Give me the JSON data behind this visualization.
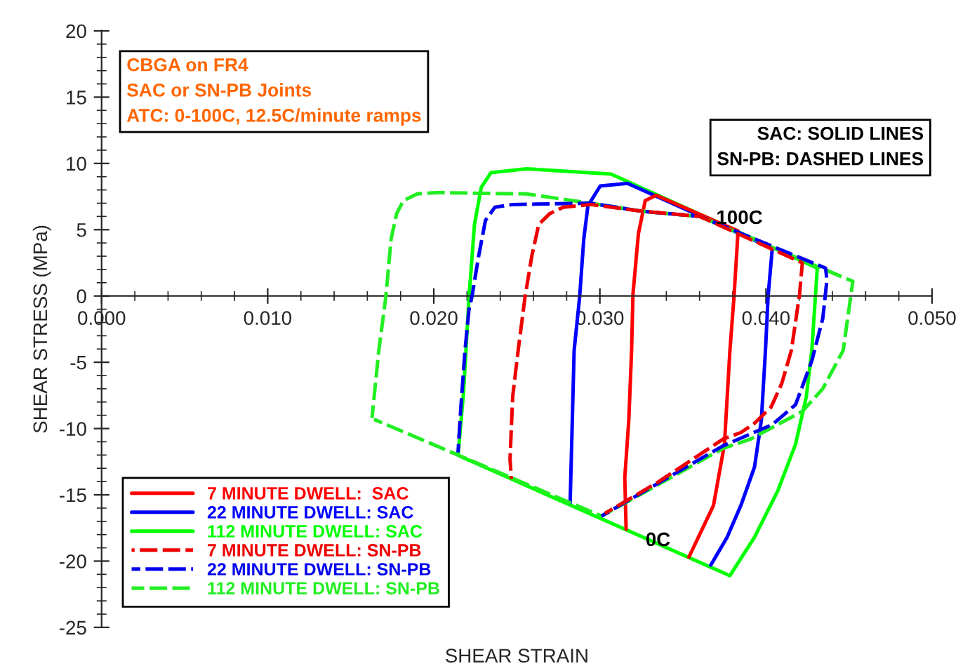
{
  "chart_data": {
    "type": "line",
    "xlabel": "SHEAR STRAIN",
    "ylabel": "SHEAR STRESS (MPa)",
    "xlim": [
      0,
      0.05
    ],
    "xticks": [
      {
        "value": 0,
        "label": "0.000"
      },
      {
        "value": 0.01,
        "label": "0.010"
      },
      {
        "value": 0.02,
        "label": "0.020"
      },
      {
        "value": 0.03,
        "label": "0.030"
      },
      {
        "value": 0.04,
        "label": "0.040"
      },
      {
        "value": 0.05,
        "label": "0.050"
      }
    ],
    "ylim": [
      -25,
      20
    ],
    "yticks": [
      -25,
      -20,
      -15,
      -10,
      -5,
      0,
      5,
      10,
      15,
      20
    ],
    "grid": false,
    "legend": "bottom left",
    "marker": "none",
    "annotations": [
      "CBGA on FR4\nSAC or SN-PB Joints\nATC: 0-100C, 12.5C/minute ramps",
      "SAC: SOLID LINES\nSN-PB: DASHED LINES",
      "100C",
      "0C"
    ],
    "series": [
      {
        "name": "7 MINUTE DWELL:  SAC",
        "color": "#ff0000",
        "line_style": "solid",
        "x": [
          0.03158,
          0.0315,
          0.03174,
          0.03191,
          0.03199,
          0.03232,
          0.03273,
          0.03339,
          0.03832,
          0.03808,
          0.03783,
          0.0375,
          0.03684,
          0.03536
        ],
        "values": [
          -17.6,
          -13.7,
          -9.4,
          -4.1,
          0.1,
          4.7,
          7.2,
          7.6,
          4.9,
          0.0,
          -4.1,
          -11.2,
          -15.8,
          -19.7
        ]
      },
      {
        "name": "22 MINUTE DWELL: SAC",
        "color": "#0000ff",
        "line_style": "solid",
        "x": [
          0.02821,
          0.02845,
          0.02878,
          0.02903,
          0.02928,
          0.03002,
          0.03166,
          0.04038,
          0.04013,
          0.03997,
          0.03972,
          0.03931,
          0.03849,
          0.03766,
          0.03668
        ],
        "values": [
          -15.6,
          -4.1,
          -0.1,
          4.3,
          6.8,
          8.3,
          8.5,
          3.6,
          0.0,
          -4.1,
          -9.4,
          -12.9,
          -15.8,
          -18.2,
          -20.3
        ]
      },
      {
        "name": "112 MINUTE DWELL: SAC",
        "color": "#00ff00",
        "line_style": "solid",
        "x": [
          0.02146,
          0.02179,
          0.02212,
          0.02245,
          0.02286,
          0.02344,
          0.02558,
          0.03067,
          0.03684,
          0.04309,
          0.04276,
          0.04243,
          0.04178,
          0.04071,
          0.03931,
          0.03783,
          0.0216
        ],
        "values": [
          -12.0,
          -7.3,
          -0.1,
          5.4,
          8.2,
          9.3,
          9.6,
          9.2,
          5.7,
          2.1,
          -4.1,
          -7.6,
          -11.2,
          -14.7,
          -18.2,
          -21.1,
          -12.1
        ]
      },
      {
        "name": "7 MINUTE DWELL: SN-PB",
        "color": "#ee0000",
        "line_style": "dashed",
        "x": [
          0.02467,
          0.02459,
          0.02475,
          0.02508,
          0.02549,
          0.0259,
          0.02632,
          0.02697,
          0.0278,
          0.02944,
          0.03248,
          0.03602,
          0.04219,
          0.04202,
          0.04153,
          0.04095,
          0.0403,
          0.03931,
          0.03849,
          0.03742,
          0.03355,
          0.0303
        ],
        "values": [
          -13.8,
          -12.3,
          -7.6,
          -4.1,
          -0.1,
          3.0,
          5.4,
          6.2,
          6.7,
          6.9,
          6.4,
          6.0,
          2.5,
          0.1,
          -4.1,
          -6.6,
          -8.4,
          -9.6,
          -10.3,
          -10.8,
          -14.0,
          -16.4
        ]
      },
      {
        "name": "22 MINUTE DWELL: SN-PB",
        "color": "#0000ee",
        "line_style": "dashed",
        "x": [
          0.02146,
          0.02163,
          0.02188,
          0.02212,
          0.02229,
          0.0227,
          0.02311,
          0.02368,
          0.02475,
          0.02944,
          0.03248,
          0.03602,
          0.04359,
          0.04367,
          0.04342,
          0.04276,
          0.04178,
          0.04038,
          0.03742,
          0.0301
        ],
        "values": [
          -11.8,
          -8.4,
          -4.1,
          -1.0,
          -0.1,
          3.0,
          5.7,
          6.7,
          6.9,
          7.0,
          6.4,
          6.0,
          2.1,
          1.2,
          -1.7,
          -4.9,
          -8.2,
          -9.7,
          -11.3,
          -16.6
        ]
      },
      {
        "name": "112 MINUTE DWELL: SN-PB",
        "color": "#22ee22",
        "line_style": "dashed",
        "x": [
          0.01628,
          0.01669,
          0.01711,
          0.01743,
          0.01776,
          0.01817,
          0.019,
          0.02015,
          0.02558,
          0.02944,
          0.03248,
          0.03602,
          0.04013,
          0.04523,
          0.04465,
          0.04342,
          0.04219,
          0.04071,
          0.03906,
          0.03742,
          0.03355,
          0.0301,
          0.02146,
          0.0164
        ],
        "values": [
          -9.2,
          -4.1,
          -0.1,
          4.3,
          6.2,
          7.2,
          7.7,
          7.8,
          7.7,
          7.0,
          6.4,
          6.0,
          3.8,
          1.1,
          -4.1,
          -7.0,
          -8.7,
          -9.7,
          -10.8,
          -11.5,
          -14.2,
          -16.6,
          -12.0,
          -9.3
        ]
      }
    ]
  }
}
